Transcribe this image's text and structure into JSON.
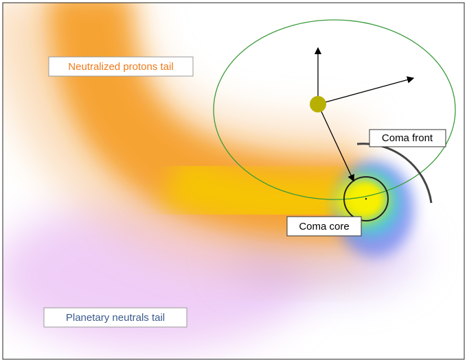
{
  "labels": {
    "protons_tail": "Neutralized protons tail",
    "coma_front": "Coma front",
    "coma_core": "Coma core",
    "neutrals_tail": "Planetary neutrals tail"
  }
}
